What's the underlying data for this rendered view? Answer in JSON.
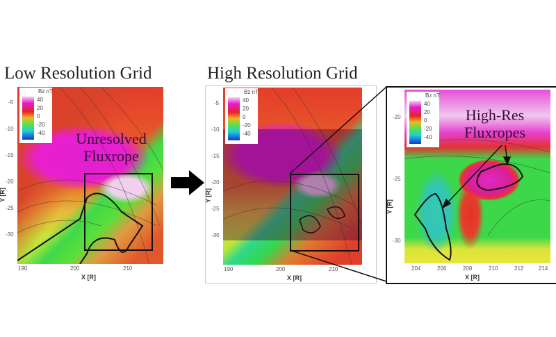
{
  "panels": {
    "low": {
      "title": "Low Resolution Grid",
      "annotation_line1": "Unresolved",
      "annotation_line2": "Fluxrope",
      "y_ticks": [
        "-5",
        "-10",
        "-15",
        "-20",
        "-25",
        "-30"
      ],
      "x_ticks": [
        "190",
        "200",
        "210"
      ],
      "xlabel": "X [R]",
      "ylabel": "Y [R]"
    },
    "high": {
      "title": "High Resolution Grid",
      "y_ticks": [
        "-5",
        "-10",
        "-15",
        "-20",
        "-25",
        "-30"
      ],
      "x_ticks": [
        "190",
        "200",
        "210"
      ],
      "xlabel": "X [R]",
      "ylabel": "Y [R]"
    },
    "zoom": {
      "annotation_line1": "High-Res",
      "annotation_line2": "Fluxropes",
      "y_ticks": [
        "-20",
        "-25",
        "-30"
      ],
      "x_ticks": [
        "204",
        "206",
        "208",
        "210",
        "212",
        "214"
      ],
      "xlabel": "X [R]",
      "ylabel": "Y [R]"
    }
  },
  "colorbar": {
    "label": "Bz nT",
    "ticks": [
      "40",
      "20",
      "0",
      "-20",
      "-40"
    ]
  }
}
